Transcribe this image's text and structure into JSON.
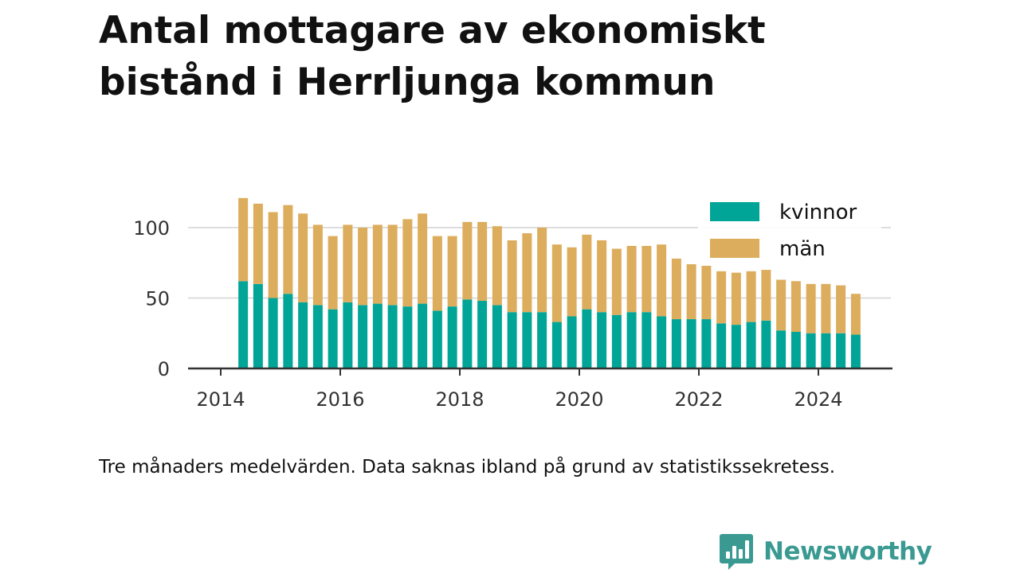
{
  "title": "Antal mottagare av ekonomiskt bistånd i Herrljunga kommun",
  "caption": "Tre månaders medelvärden. Data saknas ibland på grund av statistikssekretess.",
  "brand": {
    "name": "Newsworthy",
    "icon": "bar-chart-speech-bubble-icon",
    "color": "#3a9a92"
  },
  "chart_data": {
    "type": "bar",
    "stacked": true,
    "title": "Antal mottagare av ekonomiskt bistånd i Herrljunga kommun",
    "xlabel": "",
    "ylabel": "",
    "ylim": [
      0,
      125
    ],
    "yticks": [
      0,
      50,
      100
    ],
    "xlim": [
      2014.0,
      2025.25
    ],
    "xticks": [
      "2014",
      "2016",
      "2018",
      "2020",
      "2022",
      "2024"
    ],
    "grid": true,
    "legend_position": "top-right",
    "categories": [
      "2014-Q2",
      "2014-Q3",
      "2014-Q4",
      "2015-Q1",
      "2015-Q2",
      "2015-Q3",
      "2015-Q4",
      "2016-Q1",
      "2016-Q2",
      "2016-Q3",
      "2016-Q4",
      "2017-Q1",
      "2017-Q2",
      "2017-Q3",
      "2017-Q4",
      "2018-Q1",
      "2018-Q2",
      "2018-Q3",
      "2018-Q4",
      "2019-Q1",
      "2019-Q2",
      "2019-Q3",
      "2019-Q4",
      "2020-Q1",
      "2020-Q2",
      "2020-Q3",
      "2020-Q4",
      "2021-Q1",
      "2021-Q2",
      "2021-Q3",
      "2021-Q4",
      "2022-Q1",
      "2022-Q2",
      "2022-Q3",
      "2022-Q4",
      "2023-Q1",
      "2023-Q2",
      "2023-Q3",
      "2023-Q4",
      "2024-Q1",
      "2024-Q2",
      "2024-Q3"
    ],
    "series": [
      {
        "name": "kvinnor",
        "color": "#00a598",
        "values": [
          62,
          60,
          50,
          53,
          47,
          45,
          42,
          47,
          45,
          46,
          45,
          44,
          46,
          41,
          44,
          49,
          48,
          45,
          40,
          40,
          40,
          33,
          37,
          42,
          40,
          38,
          40,
          40,
          37,
          35,
          35,
          35,
          32,
          31,
          33,
          34,
          27,
          26,
          25,
          25,
          25,
          24
        ]
      },
      {
        "name": "män",
        "color": "#dcad5d",
        "values": [
          59,
          57,
          61,
          63,
          63,
          57,
          52,
          55,
          55,
          56,
          57,
          62,
          64,
          53,
          50,
          55,
          56,
          56,
          51,
          56,
          60,
          55,
          49,
          53,
          51,
          47,
          47,
          47,
          51,
          43,
          39,
          38,
          37,
          37,
          36,
          36,
          36,
          36,
          35,
          35,
          34,
          29
        ]
      }
    ]
  }
}
